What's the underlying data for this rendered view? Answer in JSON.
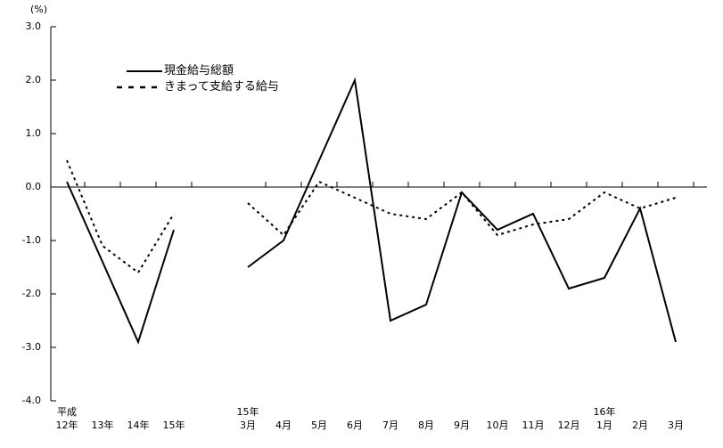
{
  "chart_data": {
    "type": "line",
    "title": "",
    "unit_label": "(%)",
    "ylabel": "(%)",
    "xlabel": "",
    "ylim": [
      -4.0,
      3.0
    ],
    "grid": false,
    "legend_position": "upper-left-inside",
    "line_color": "#000000",
    "background_color": "#ffffff",
    "ytick_values": [
      3.0,
      2.0,
      1.0,
      0.0,
      -1.0,
      -2.0,
      -3.0,
      -4.0
    ],
    "ytick_labels": [
      "3.0",
      "2.0",
      "1.0",
      "0.0",
      "-1.0",
      "-2.0",
      "-3.0",
      "-4.0"
    ],
    "legend": [
      {
        "label": "現金給与総額",
        "style": "solid"
      },
      {
        "label": "きまって支給する給与",
        "style": "dotted"
      }
    ],
    "sections": [
      {
        "name": "annual",
        "categories": [
          "12年",
          "13年",
          "14年",
          "15年"
        ],
        "year_markers": [
          {
            "index": 0,
            "label": "平成"
          }
        ],
        "series": [
          {
            "name": "現金給与総額",
            "style": "solid",
            "values": [
              0.1,
              -1.4,
              -2.9,
              -0.8
            ]
          },
          {
            "name": "きまって支給する給与",
            "style": "dotted",
            "values": [
              0.5,
              -1.1,
              -1.6,
              -0.5
            ]
          }
        ]
      },
      {
        "name": "monthly",
        "categories": [
          "3月",
          "4月",
          "5月",
          "6月",
          "7月",
          "8月",
          "9月",
          "10月",
          "11月",
          "12月",
          "1月",
          "2月",
          "3月"
        ],
        "year_markers": [
          {
            "index": 0,
            "label": "15年"
          },
          {
            "index": 10,
            "label": "16年"
          }
        ],
        "series": [
          {
            "name": "現金給与総額",
            "style": "solid",
            "values": [
              -1.5,
              -1.0,
              0.5,
              2.0,
              -2.5,
              -2.2,
              -0.1,
              -0.8,
              -0.5,
              -1.9,
              -1.7,
              -0.4,
              -2.9
            ]
          },
          {
            "name": "きまって支給する給与",
            "style": "dotted",
            "values": [
              -0.3,
              -0.9,
              0.1,
              -0.2,
              -0.5,
              -0.6,
              -0.1,
              -0.9,
              -0.7,
              -0.6,
              -0.1,
              -0.4,
              -0.2
            ]
          }
        ]
      }
    ]
  }
}
